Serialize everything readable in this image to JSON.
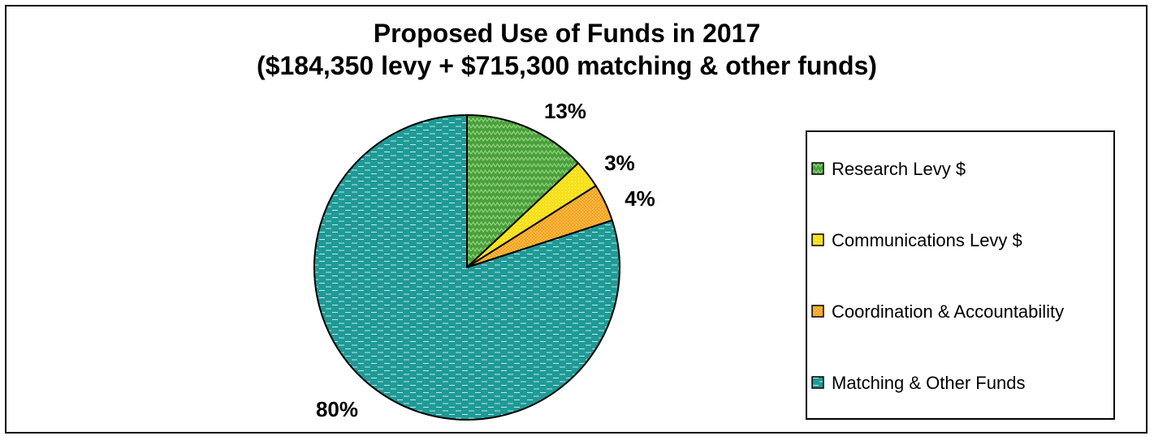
{
  "chart_data": {
    "type": "pie",
    "title": "Proposed Use of Funds in 2017",
    "subtitle": "($184,350 levy + $715,300 matching & other funds)",
    "slices": [
      {
        "name": "Research Levy $",
        "value": 13,
        "label": "13%",
        "color": "#4aa03a"
      },
      {
        "name": "Communications Levy $",
        "value": 3,
        "label": "3%",
        "color": "#f7e01a"
      },
      {
        "name": "Coordination & Accountability",
        "value": 4,
        "label": "4%",
        "color": "#f5a623"
      },
      {
        "name": "Matching & Other Funds",
        "value": 80,
        "label": "80%",
        "color": "#1f9a96"
      }
    ],
    "legend_position": "right",
    "start_angle": "12 o'clock",
    "direction": "clockwise"
  }
}
